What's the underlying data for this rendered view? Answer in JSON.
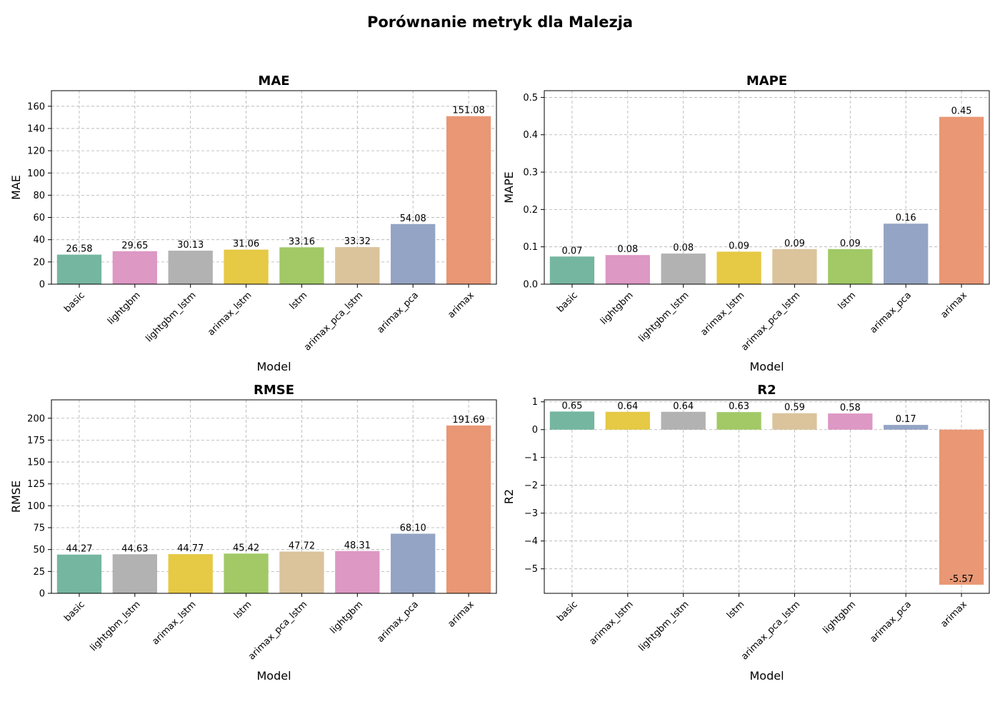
{
  "figure": {
    "title": "Porównanie metryk dla Malezja"
  },
  "colors": {
    "basic": "#75b6a0",
    "lightgbm": "#dd98c4",
    "lightgbm_lstm": "#b2b2b2",
    "arimax_lstm": "#e6c944",
    "lstm": "#a2c966",
    "arimax_pca_lstm": "#dbc39c",
    "arimax_pca": "#94a4c4",
    "arimax": "#e99775"
  },
  "chart_data": [
    {
      "type": "bar",
      "title": "MAE",
      "xlabel": "Model",
      "ylabel": "MAE",
      "categories": [
        "basic",
        "lightgbm",
        "lightgbm_lstm",
        "arimax_lstm",
        "lstm",
        "arimax_pca_lstm",
        "arimax_pca",
        "arimax"
      ],
      "values": [
        26.58,
        29.65,
        30.13,
        31.06,
        33.16,
        33.32,
        54.08,
        151.08
      ],
      "value_labels": [
        "26.58",
        "29.65",
        "30.13",
        "31.06",
        "33.16",
        "33.32",
        "54.08",
        "151.08"
      ],
      "ylim": [
        0,
        174
      ],
      "yticks": [
        0,
        20,
        40,
        60,
        80,
        100,
        120,
        140,
        160
      ],
      "ytick_labels": [
        "0",
        "20",
        "40",
        "60",
        "80",
        "100",
        "120",
        "140",
        "160"
      ],
      "grid": true
    },
    {
      "type": "bar",
      "title": "MAPE",
      "xlabel": "Model",
      "ylabel": "MAPE",
      "categories": [
        "basic",
        "lightgbm",
        "lightgbm_lstm",
        "arimax_lstm",
        "arimax_pca_lstm",
        "lstm",
        "arimax_pca",
        "arimax"
      ],
      "values": [
        0.074,
        0.078,
        0.082,
        0.087,
        0.094,
        0.094,
        0.162,
        0.448
      ],
      "value_labels": [
        "0.07",
        "0.08",
        "0.08",
        "0.09",
        "0.09",
        "0.09",
        "0.16",
        "0.45"
      ],
      "ylim": [
        0,
        0.518
      ],
      "yticks": [
        0,
        0.1,
        0.2,
        0.3,
        0.4,
        0.5
      ],
      "ytick_labels": [
        "0.0",
        "0.1",
        "0.2",
        "0.3",
        "0.4",
        "0.5"
      ],
      "grid": true
    },
    {
      "type": "bar",
      "title": "RMSE",
      "xlabel": "Model",
      "ylabel": "RMSE",
      "categories": [
        "basic",
        "lightgbm_lstm",
        "arimax_lstm",
        "lstm",
        "arimax_pca_lstm",
        "lightgbm",
        "arimax_pca",
        "arimax"
      ],
      "values": [
        44.27,
        44.63,
        44.77,
        45.42,
        47.72,
        48.31,
        68.1,
        191.69
      ],
      "value_labels": [
        "44.27",
        "44.63",
        "44.77",
        "45.42",
        "47.72",
        "48.31",
        "68.10",
        "191.69"
      ],
      "ylim": [
        0,
        221
      ],
      "yticks": [
        0,
        25,
        50,
        75,
        100,
        125,
        150,
        175,
        200
      ],
      "ytick_labels": [
        "0",
        "25",
        "50",
        "75",
        "100",
        "125",
        "150",
        "175",
        "200"
      ],
      "grid": true
    },
    {
      "type": "bar",
      "title": "R2",
      "xlabel": "Model",
      "ylabel": "R2",
      "categories": [
        "basic",
        "arimax_lstm",
        "lightgbm_lstm",
        "lstm",
        "arimax_pca_lstm",
        "lightgbm",
        "arimax_pca",
        "arimax"
      ],
      "values": [
        0.65,
        0.64,
        0.64,
        0.63,
        0.59,
        0.58,
        0.17,
        -5.57
      ],
      "value_labels": [
        "0.65",
        "0.64",
        "0.64",
        "0.63",
        "0.59",
        "0.58",
        "0.17",
        "-5.57"
      ],
      "ylim": [
        -5.88,
        1.07
      ],
      "yticks": [
        -5,
        -4,
        -3,
        -2,
        -1,
        0,
        1
      ],
      "ytick_labels": [
        "−5",
        "−4",
        "−3",
        "−2",
        "−1",
        "0",
        "1"
      ],
      "grid": true
    }
  ]
}
